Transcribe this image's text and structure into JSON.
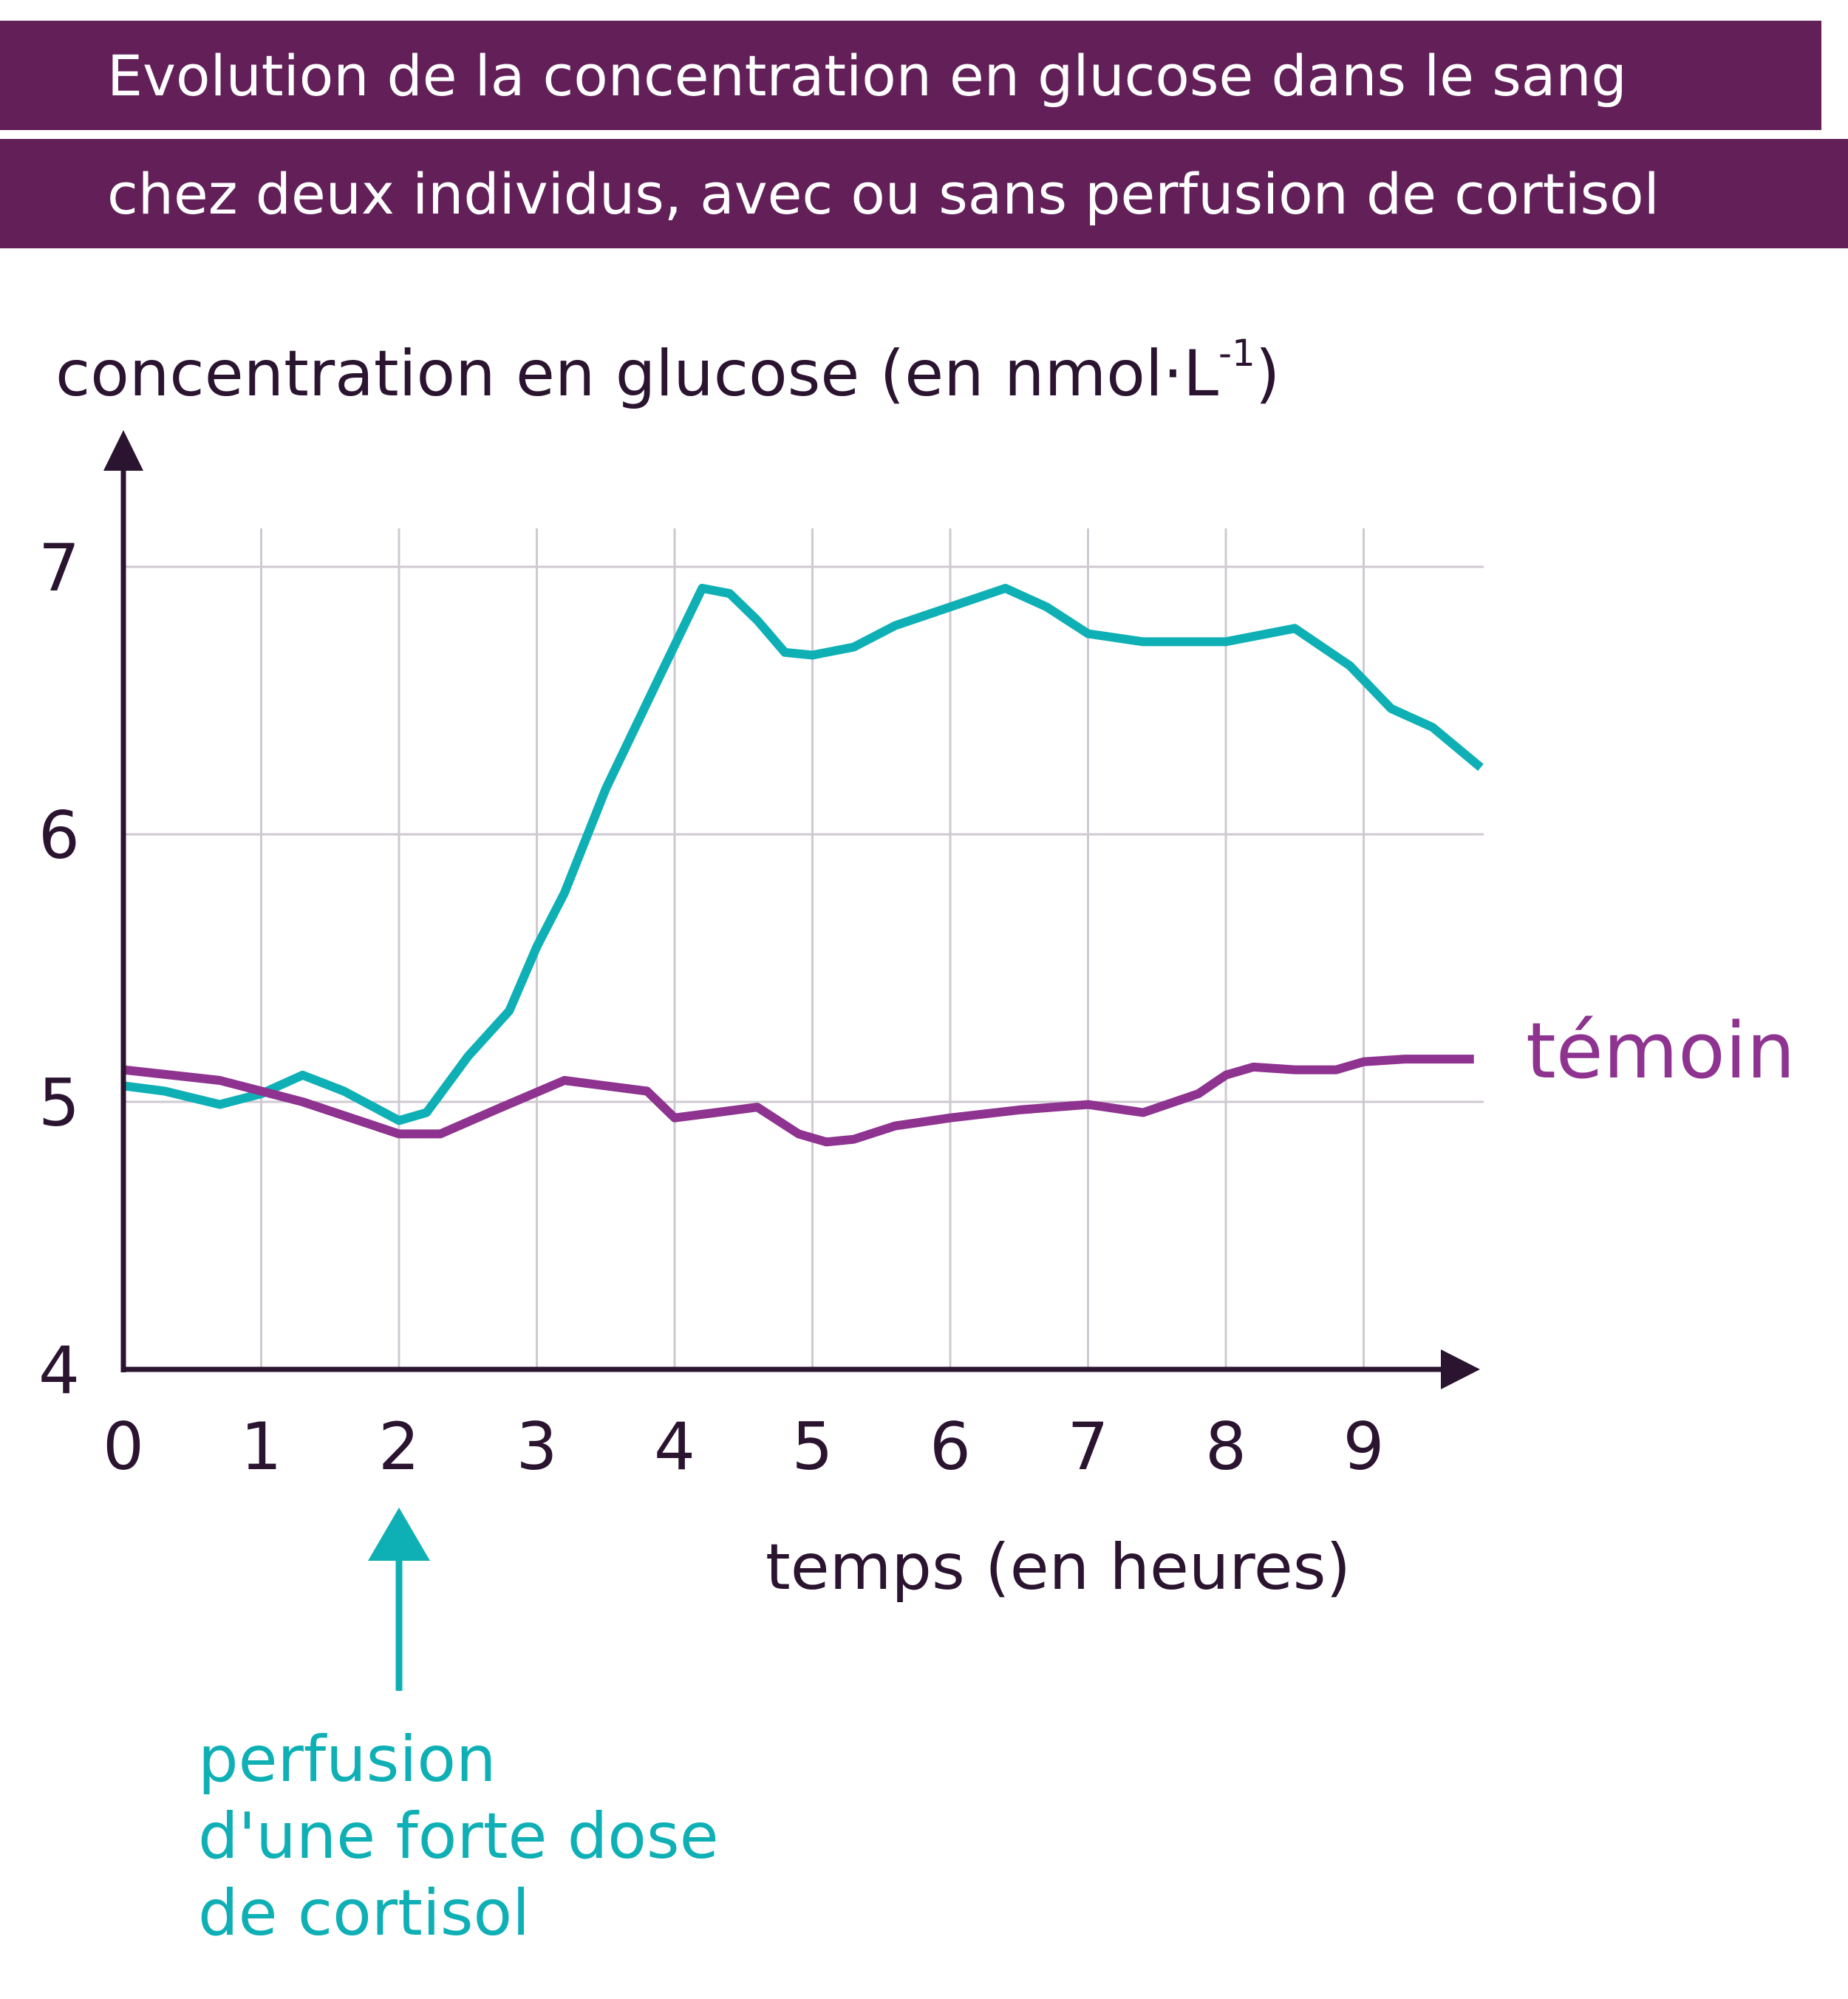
{
  "title": {
    "line1": "Evolution de la concentration en glucose dans le sang",
    "line2": "chez deux individus, avec ou sans perfusion de cortisol"
  },
  "colors": {
    "banner": "#621f58",
    "cortisol": "#0fb0b5",
    "temoin": "#8e3390",
    "axis": "#2b1430",
    "grid": "#cfc9d2"
  },
  "chart_data": {
    "type": "line",
    "ylabel": "concentration en glucose (en nmol·L",
    "ylabel_sup": "-1",
    "ylabel_end": ")",
    "xlabel": "temps (en heures)",
    "xlim": [
      0,
      9.8
    ],
    "ylim": [
      4,
      7.3
    ],
    "grid": true,
    "x_ticks": [
      "0",
      "1",
      "2",
      "3",
      "4",
      "5",
      "6",
      "7",
      "8",
      "9"
    ],
    "y_ticks": [
      "4",
      "5",
      "6",
      "7"
    ],
    "series": [
      {
        "label": "",
        "color": "#0fb0b5",
        "x": [
          0,
          0.3,
          0.7,
          1.0,
          1.3,
          1.6,
          2.0,
          2.2,
          2.5,
          2.8,
          3.0,
          3.2,
          3.5,
          3.9,
          4.2,
          4.4,
          4.6,
          4.8,
          5.0,
          5.3,
          5.6,
          6.0,
          6.4,
          6.7,
          7.0,
          7.4,
          8.0,
          8.5,
          8.9,
          9.2,
          9.5,
          9.85
        ],
        "y": [
          5.06,
          5.04,
          4.99,
          5.03,
          5.1,
          5.04,
          4.93,
          4.96,
          5.17,
          5.34,
          5.58,
          5.78,
          6.17,
          6.6,
          6.92,
          6.9,
          6.8,
          6.68,
          6.67,
          6.7,
          6.78,
          6.85,
          6.92,
          6.85,
          6.75,
          6.72,
          6.72,
          6.77,
          6.63,
          6.47,
          6.4,
          6.25
        ]
      },
      {
        "label": "témoin",
        "color": "#8e3390",
        "x": [
          0,
          0.7,
          1.3,
          2.0,
          2.3,
          2.7,
          3.2,
          3.5,
          3.8,
          4.0,
          4.3,
          4.6,
          4.9,
          5.1,
          5.3,
          5.6,
          6.0,
          6.5,
          7.0,
          7.4,
          7.8,
          8.0,
          8.2,
          8.5,
          8.8,
          9.0,
          9.3,
          9.6,
          9.8
        ],
        "y": [
          5.12,
          5.08,
          5.0,
          4.88,
          4.88,
          4.97,
          5.08,
          5.06,
          5.04,
          4.94,
          4.96,
          4.98,
          4.88,
          4.85,
          4.86,
          4.91,
          4.94,
          4.97,
          4.99,
          4.96,
          5.03,
          5.1,
          5.13,
          5.12,
          5.12,
          5.15,
          5.16,
          5.16,
          5.16
        ]
      }
    ],
    "annotations": {
      "temoin_label": "témoin",
      "cortisol_label_lines": [
        "perfusion",
        "d'une forte dose",
        "de cortisol"
      ],
      "arrow_at_x": 2
    }
  }
}
